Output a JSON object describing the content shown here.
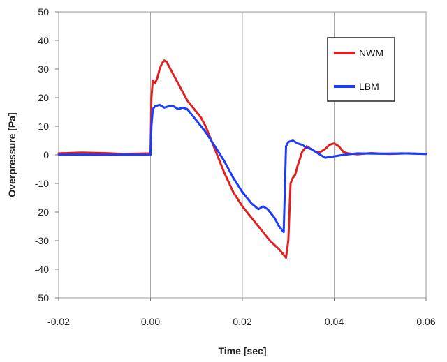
{
  "chart_data": {
    "type": "line",
    "title": "",
    "xlabel": "Time [sec]",
    "ylabel": "Overpressure [Pa]",
    "xlim": [
      -0.02,
      0.06
    ],
    "ylim": [
      -50,
      50
    ],
    "x_ticks": [
      -0.02,
      0.0,
      0.02,
      0.04,
      0.06
    ],
    "x_tick_labels": [
      "-0.02",
      "0.00",
      "0.02",
      "0.04",
      "0.06"
    ],
    "y_ticks": [
      -50,
      -40,
      -30,
      -20,
      -10,
      0,
      10,
      20,
      30,
      40,
      50
    ],
    "y_tick_labels": [
      "-50",
      "-40",
      "-30",
      "-20",
      "-10",
      "0",
      "10",
      "20",
      "30",
      "40",
      "50"
    ],
    "grid": "vertical-major",
    "legend_position": "top-right",
    "series": [
      {
        "name": "NWM",
        "color": "#e02020",
        "x": [
          -0.02,
          -0.015,
          -0.01,
          -0.006,
          0.0,
          0.0002,
          0.0005,
          0.001,
          0.0015,
          0.002,
          0.0025,
          0.003,
          0.0035,
          0.004,
          0.005,
          0.006,
          0.007,
          0.008,
          0.009,
          0.01,
          0.011,
          0.012,
          0.014,
          0.016,
          0.018,
          0.02,
          0.022,
          0.024,
          0.026,
          0.028,
          0.029,
          0.0295,
          0.03,
          0.0305,
          0.031,
          0.0315,
          0.032,
          0.033,
          0.034,
          0.035,
          0.036,
          0.037,
          0.038,
          0.039,
          0.04,
          0.041,
          0.042,
          0.043,
          0.045,
          0.048,
          0.052,
          0.056,
          0.06
        ],
        "y": [
          0.5,
          0.8,
          0.6,
          0.3,
          0.5,
          20,
          26,
          25,
          27,
          30,
          32,
          33,
          32.5,
          31,
          28,
          25,
          22,
          19,
          17,
          15,
          13,
          10,
          2,
          -6,
          -13,
          -18,
          -22,
          -26,
          -30,
          -33,
          -35,
          -36,
          -30,
          -10,
          -8,
          -7,
          -4,
          1,
          3,
          2,
          1,
          1,
          2,
          3.5,
          4,
          3,
          1,
          0.5,
          0.2,
          0.6,
          0.3,
          0.5,
          0.3
        ]
      },
      {
        "name": "LBM",
        "color": "#1a3cff",
        "x": [
          -0.02,
          -0.015,
          -0.01,
          -0.005,
          0.0,
          0.0002,
          0.0005,
          0.001,
          0.002,
          0.003,
          0.004,
          0.005,
          0.006,
          0.007,
          0.008,
          0.009,
          0.01,
          0.012,
          0.014,
          0.016,
          0.018,
          0.02,
          0.022,
          0.0235,
          0.0245,
          0.0255,
          0.027,
          0.028,
          0.029,
          0.0295,
          0.03,
          0.031,
          0.032,
          0.033,
          0.034,
          0.035,
          0.036,
          0.037,
          0.038,
          0.04,
          0.042,
          0.045,
          0.05,
          0.055,
          0.06
        ],
        "y": [
          0,
          0.1,
          0,
          0.1,
          0,
          10,
          16,
          17,
          17.5,
          16.5,
          17,
          17,
          16,
          16.5,
          16,
          14,
          12,
          8,
          3,
          -2,
          -8,
          -13,
          -17,
          -19,
          -18,
          -19,
          -22,
          -25,
          -27,
          3,
          4.5,
          5,
          4,
          3.5,
          2.5,
          2,
          1,
          0,
          -1,
          -0.5,
          0,
          0.5,
          0.4,
          0.5,
          0.3
        ]
      }
    ]
  }
}
